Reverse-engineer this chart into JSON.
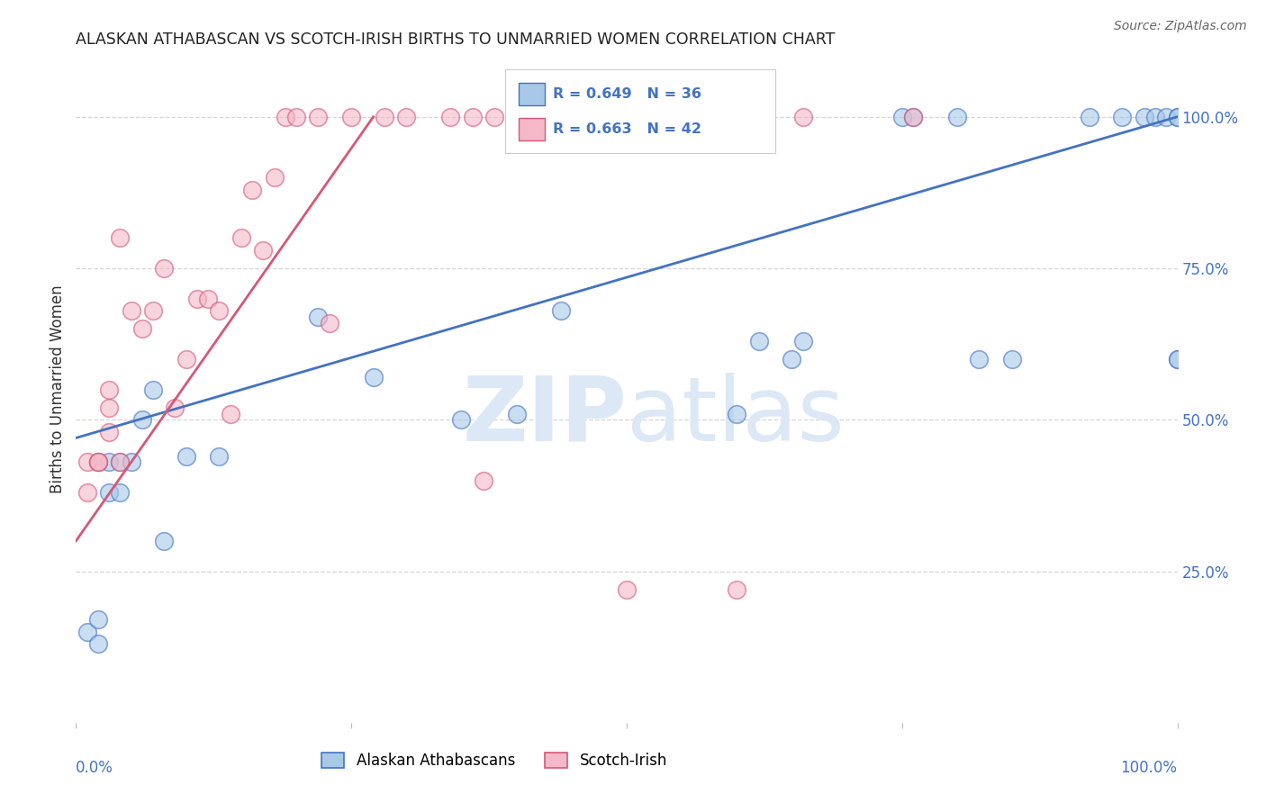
{
  "title": "ALASKAN ATHABASCAN VS SCOTCH-IRISH BIRTHS TO UNMARRIED WOMEN CORRELATION CHART",
  "source": "Source: ZipAtlas.com",
  "ylabel": "Births to Unmarried Women",
  "legend_label1": "Alaskan Athabascans",
  "legend_label2": "Scotch-Irish",
  "R1": 0.649,
  "N1": 36,
  "R2": 0.663,
  "N2": 42,
  "blue_fill": "#a8c8e8",
  "blue_edge": "#4472c4",
  "pink_fill": "#f4b8c8",
  "pink_edge": "#d45878",
  "blue_line_color": "#4472c4",
  "pink_line_color": "#d45878",
  "watermark_color": "#dce8f5",
  "axis_label_color": "#4472c4",
  "grid_color": "#cccccc",
  "background_color": "#ffffff",
  "title_color": "#222222",
  "blue_scatter_x": [
    0.01,
    0.02,
    0.03,
    0.04,
    0.05,
    0.06,
    0.02,
    0.03,
    0.04,
    0.07,
    0.08,
    0.1,
    0.13,
    0.22,
    0.27,
    0.35,
    0.4,
    0.44,
    0.6,
    0.62,
    0.65,
    0.66,
    0.75,
    0.76,
    0.8,
    0.82,
    0.85,
    0.92,
    0.95,
    0.97,
    0.98,
    0.99,
    1.0,
    1.0,
    1.0,
    1.0
  ],
  "blue_scatter_y": [
    0.15,
    0.17,
    0.43,
    0.43,
    0.43,
    0.5,
    0.13,
    0.38,
    0.38,
    0.55,
    0.3,
    0.44,
    0.44,
    0.67,
    0.57,
    0.5,
    0.51,
    0.68,
    0.51,
    0.63,
    0.6,
    0.63,
    1.0,
    1.0,
    1.0,
    0.6,
    0.6,
    1.0,
    1.0,
    1.0,
    1.0,
    1.0,
    1.0,
    1.0,
    0.6,
    0.6
  ],
  "pink_scatter_x": [
    0.01,
    0.01,
    0.02,
    0.02,
    0.02,
    0.03,
    0.03,
    0.03,
    0.04,
    0.04,
    0.05,
    0.06,
    0.07,
    0.08,
    0.09,
    0.1,
    0.11,
    0.12,
    0.13,
    0.14,
    0.15,
    0.16,
    0.17,
    0.18,
    0.19,
    0.2,
    0.22,
    0.23,
    0.25,
    0.28,
    0.3,
    0.34,
    0.36,
    0.38,
    0.4,
    0.44,
    0.53,
    0.6,
    0.66,
    0.76,
    0.37,
    0.5
  ],
  "pink_scatter_y": [
    0.43,
    0.38,
    0.43,
    0.43,
    0.43,
    0.55,
    0.52,
    0.48,
    0.8,
    0.43,
    0.68,
    0.65,
    0.68,
    0.75,
    0.52,
    0.6,
    0.7,
    0.7,
    0.68,
    0.51,
    0.8,
    0.88,
    0.78,
    0.9,
    1.0,
    1.0,
    1.0,
    0.66,
    1.0,
    1.0,
    1.0,
    1.0,
    1.0,
    1.0,
    1.0,
    1.0,
    1.0,
    0.22,
    1.0,
    1.0,
    0.4,
    0.22
  ],
  "blue_line_x": [
    0.0,
    1.0
  ],
  "blue_line_y": [
    0.47,
    1.0
  ],
  "pink_line_x": [
    0.0,
    0.27
  ],
  "pink_line_y": [
    0.3,
    1.0
  ],
  "xlim": [
    0.0,
    1.0
  ],
  "ylim": [
    0.0,
    1.1
  ],
  "yticks": [
    0.25,
    0.5,
    0.75,
    1.0
  ],
  "ytick_labels": [
    "25.0%",
    "50.0%",
    "75.0%",
    "100.0%"
  ],
  "xtick_labels_show": [
    "0.0%",
    "100.0%"
  ]
}
